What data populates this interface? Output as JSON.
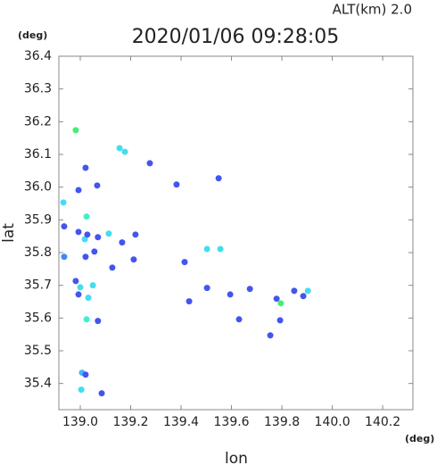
{
  "chart_data": {
    "type": "scatter",
    "header": "ALT(km)  2.0",
    "title": "2020/01/06 09:28:05",
    "y_unit": "(deg)",
    "x_unit": "(deg)",
    "xlabel": "lon",
    "ylabel": "lat",
    "xlim": [
      138.915,
      140.32
    ],
    "ylim": [
      35.32,
      36.4
    ],
    "xticks": [
      {
        "value": 139,
        "label": "139.0"
      },
      139.2,
      139.4,
      139.6,
      139.8,
      {
        "value": 140,
        "label": "140.0"
      },
      140.2
    ],
    "yticks": [
      35.4,
      35.5,
      35.6,
      35.7,
      35.8,
      35.9,
      {
        "value": 36,
        "label": "36.0"
      },
      36.1,
      36.2,
      36.3,
      36.4
    ],
    "x": [
      138.982,
      139.156,
      139.177,
      139.276,
      139.021,
      139.067,
      138.993,
      138.933,
      139.025,
      138.936,
      138.993,
      139.018,
      139.028,
      139.07,
      139.113,
      139.219,
      139.166,
      138.936,
      139.021,
      139.056,
      139.127,
      139.212,
      139.414,
      139.503,
      139.556,
      138.982,
      139.0,
      139.05,
      138.993,
      139.032,
      139.503,
      139.595,
      139.432,
      139.796,
      139.849,
      139.885,
      139.903,
      139.025,
      139.07,
      139.63,
      139.754,
      139.007,
      139.021,
      139.004,
      139.085,
      139.793,
      139.382,
      139.549,
      139.779,
      139.673
    ],
    "y": [
      36.174,
      36.119,
      36.108,
      36.073,
      36.059,
      36.005,
      35.991,
      35.953,
      35.91,
      35.88,
      35.863,
      35.841,
      35.855,
      35.847,
      35.858,
      35.855,
      35.831,
      35.787,
      35.787,
      35.803,
      35.754,
      35.779,
      35.771,
      35.811,
      35.811,
      35.713,
      35.694,
      35.7,
      35.672,
      35.662,
      35.692,
      35.672,
      35.651,
      35.645,
      35.683,
      35.667,
      35.683,
      35.596,
      35.591,
      35.596,
      35.547,
      35.433,
      35.427,
      35.381,
      35.37,
      35.593,
      36.008,
      36.027,
      35.659,
      35.689
    ],
    "colors": [
      "#44ee77",
      "#44ddee",
      "#44ddee",
      "#4455ee",
      "#4455ee",
      "#4455ee",
      "#4455ee",
      "#44ddee",
      "#44eecc",
      "#4455ee",
      "#4455ee",
      "#44ddee",
      "#4455ee",
      "#4455ee",
      "#44ddee",
      "#4455ee",
      "#4455ee",
      "#4488ee",
      "#4455ee",
      "#4455ee",
      "#4455ee",
      "#4455ee",
      "#4455ee",
      "#44ddee",
      "#44ddee",
      "#4455ee",
      "#44ddee",
      "#44ddee",
      "#4455ee",
      "#44ddee",
      "#4455ee",
      "#4455ee",
      "#4455ee",
      "#44ee77",
      "#4455ee",
      "#4455ee",
      "#44ddee",
      "#44eecc",
      "#4455ee",
      "#4455ee",
      "#4455ee",
      "#44bbee",
      "#4455ee",
      "#44ddee",
      "#4455ee",
      "#4455ee",
      "#4455ee",
      "#4455ee",
      "#4455ee",
      "#4455ee"
    ]
  }
}
